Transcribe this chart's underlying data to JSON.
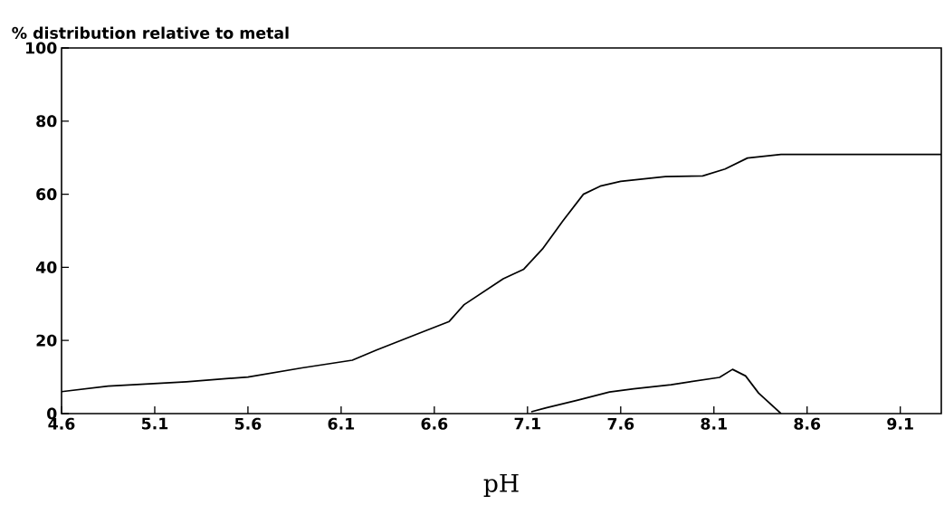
{
  "chart_data": {
    "type": "line",
    "title": "% distribution relative to metal",
    "xlabel": "pH",
    "xlim": [
      4.6,
      9.32
    ],
    "ylim": [
      0,
      100
    ],
    "xticks": [
      4.6,
      5.1,
      5.6,
      6.1,
      6.6,
      7.1,
      7.6,
      8.1,
      8.6,
      9.1
    ],
    "yticks": [
      0,
      20,
      40,
      60,
      80,
      100
    ],
    "series": [
      {
        "color": "#000000",
        "x": [
          4.6,
          4.85,
          5.27,
          5.6,
          5.89,
          6.16,
          6.29,
          6.54,
          6.68,
          6.76,
          6.97,
          7.08,
          7.18,
          7.29,
          7.4,
          7.49,
          7.6,
          7.84,
          8.04,
          8.16,
          8.28,
          8.46,
          9.32
        ],
        "values": [
          6.0,
          7.5,
          8.7,
          10.0,
          12.5,
          14.6,
          17.4,
          22.4,
          25.2,
          29.8,
          36.9,
          39.5,
          45.0,
          52.7,
          60.0,
          62.2,
          63.5,
          64.8,
          65.0,
          66.9,
          69.9,
          70.9,
          70.9
        ]
      },
      {
        "color": "#000000",
        "x": [
          7.12,
          7.2,
          7.37,
          7.54,
          7.67,
          7.87,
          8.13,
          8.2,
          8.27,
          8.34,
          8.46
        ],
        "values": [
          0.5,
          1.6,
          3.7,
          5.9,
          6.8,
          7.9,
          9.9,
          12.1,
          10.3,
          5.6,
          0
        ]
      }
    ]
  }
}
